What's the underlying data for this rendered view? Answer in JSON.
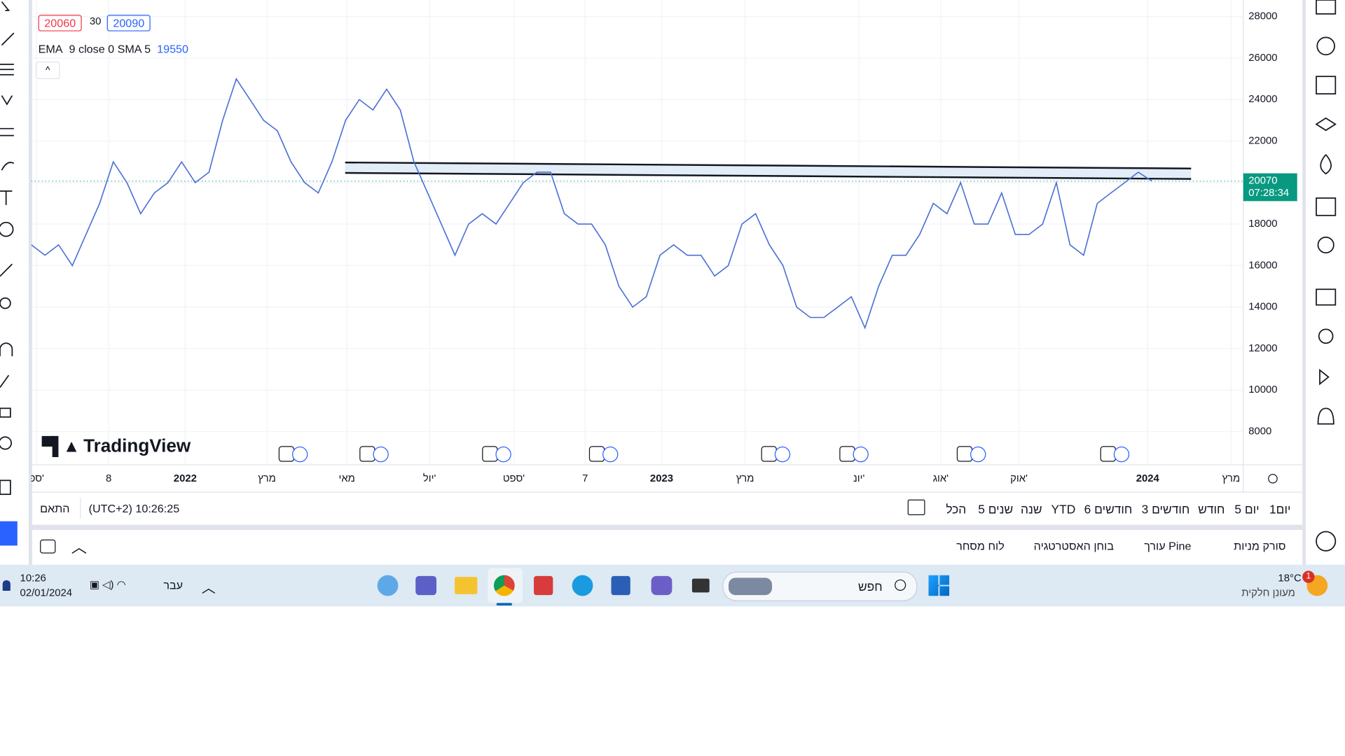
{
  "legend": {
    "price_low": "20060",
    "spread": "30",
    "price_high": "20090",
    "indicator": "EMA",
    "params": "9 close 0 SMA 5",
    "indicator_value": "19550"
  },
  "logo": "TradingView",
  "chart": {
    "type": "line",
    "color": "#4a6fd6",
    "values": [
      17000,
      16500,
      17000,
      16000,
      17500,
      19000,
      21000,
      20000,
      18500,
      19500,
      20000,
      21000,
      20000,
      20500,
      23000,
      25000,
      24000,
      23000,
      22500,
      21000,
      20000,
      19500,
      21000,
      23000,
      24000,
      23500,
      24500,
      23500,
      21000,
      19500,
      18000,
      16500,
      18000,
      18500,
      18000,
      19000,
      20000,
      20500,
      20500,
      18500,
      18000,
      18000,
      17000,
      15000,
      14000,
      14500,
      16500,
      17000,
      16500,
      16500,
      15500,
      16000,
      18000,
      18500,
      17000,
      16000,
      14000,
      13500,
      13500,
      14000,
      14500,
      13000,
      15000,
      16500,
      16500,
      17500,
      19000,
      18500,
      20000,
      18000,
      18000,
      19500,
      17500,
      17500,
      18000,
      20000,
      17000,
      16500,
      19000,
      19500,
      20000,
      20500,
      20070
    ],
    "ylim": [
      6400,
      28800
    ],
    "yticks": [
      8000,
      10000,
      12000,
      14000,
      16000,
      18000,
      20000,
      22000,
      24000,
      26000,
      28000
    ],
    "x_labels": [
      "ספ'",
      "8",
      "2022",
      "מרץ",
      "מאי",
      "יול'",
      "ספט'",
      "7",
      "2023",
      "מרץ",
      "יונ'",
      "אוג'",
      "אוק'",
      "2024",
      "מרץ"
    ],
    "last_price": 20070,
    "countdown": "07:28:34",
    "grid": true
  },
  "bottom_bar": {
    "periods": [
      "הכל",
      "5 שנים",
      "שנה",
      "YTD",
      "6 חודשים",
      "3 חודשים",
      "חודש",
      "5 יום",
      "1יום"
    ],
    "timezone": "(UTC+2) 10:26:25",
    "adjust": "התאם"
  },
  "panels": [
    "לוח מסחר",
    "בוחן האסטרטגיה",
    "עורך Pine",
    "סורק מניות"
  ],
  "taskbar": {
    "time": "10:26",
    "date": "02/01/2024",
    "language": "עבר",
    "search": "חפש",
    "temperature": "18°C",
    "weather": "מעונן חלקית",
    "badge": "1"
  }
}
